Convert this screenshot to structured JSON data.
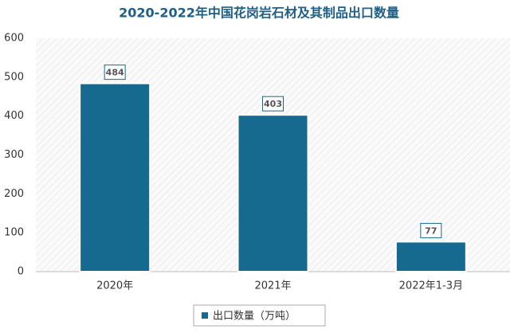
{
  "chart_data": {
    "type": "bar",
    "title": "2020-2022年中国花岗岩石材及其制品出口数量",
    "categories": [
      "2020年",
      "2021年",
      "2022年1-3月"
    ],
    "series": [
      {
        "name": "出口数量（万吨）",
        "color": "#16698f",
        "values": [
          484,
          403,
          77
        ]
      }
    ],
    "ylim": [
      0,
      600
    ],
    "yticks": [
      0,
      100,
      200,
      300,
      400,
      500,
      600
    ],
    "grid": false,
    "legend": "bottom"
  }
}
